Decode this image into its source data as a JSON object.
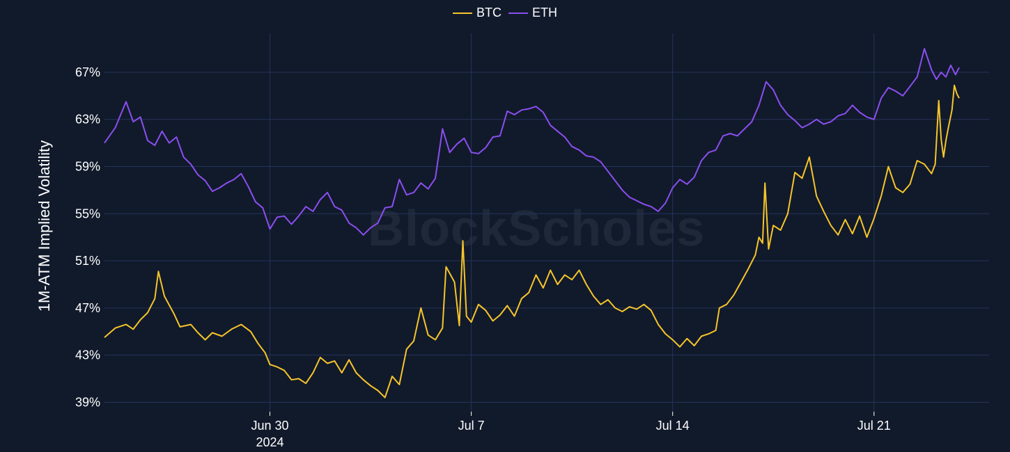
{
  "chart_data": {
    "type": "line",
    "ylabel": "1M-ATM Implied Volatility",
    "watermark": "BlockScholes",
    "y_ticks": [
      "39%",
      "43%",
      "47%",
      "51%",
      "55%",
      "59%",
      "63%",
      "67%"
    ],
    "y_tick_values": [
      39,
      43,
      47,
      51,
      55,
      59,
      63,
      67
    ],
    "ylim": [
      38.2,
      70.3
    ],
    "x_range": [
      "2024-06-24T06:00",
      "2024-07-23T12:00"
    ],
    "x_ticks": [
      {
        "date": "2024-06-30",
        "label": "Jun 30",
        "sublabel": "2024"
      },
      {
        "date": "2024-07-07",
        "label": "Jul 7",
        "sublabel": ""
      },
      {
        "date": "2024-07-14",
        "label": "Jul 14",
        "sublabel": ""
      },
      {
        "date": "2024-07-21",
        "label": "Jul 21",
        "sublabel": ""
      }
    ],
    "grid": true,
    "legend_position": "top-center",
    "series": [
      {
        "name": "BTC",
        "color": "#f7c52b",
        "points": [
          [
            "2024-06-24T06:00",
            44.5
          ],
          [
            "2024-06-24T15:00",
            45.3
          ],
          [
            "2024-06-25T00:00",
            45.6
          ],
          [
            "2024-06-25T06:00",
            45.2
          ],
          [
            "2024-06-25T12:00",
            46.0
          ],
          [
            "2024-06-25T18:00",
            46.6
          ],
          [
            "2024-06-26T00:00",
            47.8
          ],
          [
            "2024-06-26T03:00",
            50.1
          ],
          [
            "2024-06-26T08:00",
            48.0
          ],
          [
            "2024-06-26T16:00",
            46.5
          ],
          [
            "2024-06-26T21:00",
            45.4
          ],
          [
            "2024-06-27T06:00",
            45.6
          ],
          [
            "2024-06-27T12:00",
            44.9
          ],
          [
            "2024-06-27T18:00",
            44.3
          ],
          [
            "2024-06-28T00:00",
            44.9
          ],
          [
            "2024-06-28T08:00",
            44.6
          ],
          [
            "2024-06-28T16:00",
            45.2
          ],
          [
            "2024-06-29T00:00",
            45.6
          ],
          [
            "2024-06-29T08:00",
            45.0
          ],
          [
            "2024-06-29T14:00",
            44.0
          ],
          [
            "2024-06-29T20:00",
            43.2
          ],
          [
            "2024-06-30T00:00",
            42.2
          ],
          [
            "2024-06-30T06:00",
            42.0
          ],
          [
            "2024-06-30T12:00",
            41.7
          ],
          [
            "2024-06-30T18:00",
            40.9
          ],
          [
            "2024-07-01T00:00",
            41.0
          ],
          [
            "2024-07-01T06:00",
            40.6
          ],
          [
            "2024-07-01T12:00",
            41.5
          ],
          [
            "2024-07-01T18:00",
            42.8
          ],
          [
            "2024-07-02T00:00",
            42.3
          ],
          [
            "2024-07-02T06:00",
            42.5
          ],
          [
            "2024-07-02T12:00",
            41.5
          ],
          [
            "2024-07-02T18:00",
            42.6
          ],
          [
            "2024-07-03T00:00",
            41.5
          ],
          [
            "2024-07-03T06:00",
            40.9
          ],
          [
            "2024-07-03T12:00",
            40.4
          ],
          [
            "2024-07-03T18:00",
            40.0
          ],
          [
            "2024-07-04T00:00",
            39.4
          ],
          [
            "2024-07-04T06:00",
            41.2
          ],
          [
            "2024-07-04T12:00",
            40.5
          ],
          [
            "2024-07-04T18:00",
            43.5
          ],
          [
            "2024-07-05T00:00",
            44.2
          ],
          [
            "2024-07-05T06:00",
            47.0
          ],
          [
            "2024-07-05T12:00",
            44.7
          ],
          [
            "2024-07-05T18:00",
            44.3
          ],
          [
            "2024-07-06T00:00",
            45.3
          ],
          [
            "2024-07-06T03:00",
            50.5
          ],
          [
            "2024-07-06T10:00",
            49.2
          ],
          [
            "2024-07-06T14:00",
            45.5
          ],
          [
            "2024-07-06T17:00",
            52.7
          ],
          [
            "2024-07-06T20:00",
            46.3
          ],
          [
            "2024-07-07T00:00",
            45.8
          ],
          [
            "2024-07-07T06:00",
            47.3
          ],
          [
            "2024-07-07T12:00",
            46.8
          ],
          [
            "2024-07-07T18:00",
            45.9
          ],
          [
            "2024-07-08T00:00",
            46.4
          ],
          [
            "2024-07-08T06:00",
            47.2
          ],
          [
            "2024-07-08T12:00",
            46.3
          ],
          [
            "2024-07-08T18:00",
            47.8
          ],
          [
            "2024-07-09T00:00",
            48.3
          ],
          [
            "2024-07-09T06:00",
            49.8
          ],
          [
            "2024-07-09T12:00",
            48.7
          ],
          [
            "2024-07-09T18:00",
            50.2
          ],
          [
            "2024-07-10T00:00",
            49.0
          ],
          [
            "2024-07-10T06:00",
            49.8
          ],
          [
            "2024-07-10T12:00",
            49.4
          ],
          [
            "2024-07-10T18:00",
            50.2
          ],
          [
            "2024-07-11T00:00",
            49.0
          ],
          [
            "2024-07-11T06:00",
            48.0
          ],
          [
            "2024-07-11T12:00",
            47.3
          ],
          [
            "2024-07-11T18:00",
            47.7
          ],
          [
            "2024-07-12T00:00",
            47.0
          ],
          [
            "2024-07-12T06:00",
            46.7
          ],
          [
            "2024-07-12T12:00",
            47.1
          ],
          [
            "2024-07-12T18:00",
            46.9
          ],
          [
            "2024-07-13T00:00",
            47.3
          ],
          [
            "2024-07-13T06:00",
            46.8
          ],
          [
            "2024-07-13T12:00",
            45.6
          ],
          [
            "2024-07-13T18:00",
            44.8
          ],
          [
            "2024-07-14T00:00",
            44.3
          ],
          [
            "2024-07-14T06:00",
            43.7
          ],
          [
            "2024-07-14T12:00",
            44.4
          ],
          [
            "2024-07-14T18:00",
            43.8
          ],
          [
            "2024-07-15T00:00",
            44.6
          ],
          [
            "2024-07-15T06:00",
            44.8
          ],
          [
            "2024-07-15T12:00",
            45.1
          ],
          [
            "2024-07-15T15:00",
            47.0
          ],
          [
            "2024-07-15T21:00",
            47.3
          ],
          [
            "2024-07-16T03:00",
            48.1
          ],
          [
            "2024-07-16T09:00",
            49.2
          ],
          [
            "2024-07-16T15:00",
            50.3
          ],
          [
            "2024-07-16T21:00",
            51.5
          ],
          [
            "2024-07-17T00:00",
            53.0
          ],
          [
            "2024-07-17T03:00",
            52.5
          ],
          [
            "2024-07-17T05:00",
            57.6
          ],
          [
            "2024-07-17T08:00",
            52.0
          ],
          [
            "2024-07-17T12:00",
            54.0
          ],
          [
            "2024-07-17T18:00",
            53.6
          ],
          [
            "2024-07-18T00:00",
            55.0
          ],
          [
            "2024-07-18T06:00",
            58.5
          ],
          [
            "2024-07-18T12:00",
            58.0
          ],
          [
            "2024-07-18T18:00",
            59.8
          ],
          [
            "2024-07-19T00:00",
            56.5
          ],
          [
            "2024-07-19T06:00",
            55.2
          ],
          [
            "2024-07-19T12:00",
            54.0
          ],
          [
            "2024-07-19T18:00",
            53.2
          ],
          [
            "2024-07-20T00:00",
            54.5
          ],
          [
            "2024-07-20T06:00",
            53.3
          ],
          [
            "2024-07-20T12:00",
            54.8
          ],
          [
            "2024-07-20T18:00",
            53.0
          ],
          [
            "2024-07-21T00:00",
            54.6
          ],
          [
            "2024-07-21T06:00",
            56.5
          ],
          [
            "2024-07-21T12:00",
            59.0
          ],
          [
            "2024-07-21T18:00",
            57.2
          ],
          [
            "2024-07-22T00:00",
            56.8
          ],
          [
            "2024-07-22T06:00",
            57.5
          ],
          [
            "2024-07-22T12:00",
            59.5
          ],
          [
            "2024-07-22T18:00",
            59.2
          ],
          [
            "2024-07-23T00:00",
            58.4
          ],
          [
            "2024-07-23T03:00",
            59.2
          ],
          [
            "2024-07-23T06:00",
            64.6
          ],
          [
            "2024-07-23T08:00",
            61.3
          ],
          [
            "2024-07-23T10:00",
            59.8
          ],
          [
            "2024-07-23T12:00",
            61.2
          ],
          [
            "2024-07-23T14:00",
            62.3
          ],
          [
            "2024-07-23T17:00",
            63.8
          ],
          [
            "2024-07-23T19:00",
            65.9
          ],
          [
            "2024-07-23T21:00",
            65.2
          ],
          [
            "2024-07-23T23:00",
            64.8
          ]
        ]
      },
      {
        "name": "ETH",
        "color": "#8c4ef0",
        "points": [
          [
            "2024-06-24T06:00",
            61.0
          ],
          [
            "2024-06-24T15:00",
            62.3
          ],
          [
            "2024-06-25T00:00",
            64.5
          ],
          [
            "2024-06-25T06:00",
            62.8
          ],
          [
            "2024-06-25T12:00",
            63.2
          ],
          [
            "2024-06-25T18:00",
            61.2
          ],
          [
            "2024-06-26T00:00",
            60.8
          ],
          [
            "2024-06-26T06:00",
            62.0
          ],
          [
            "2024-06-26T12:00",
            61.0
          ],
          [
            "2024-06-26T18:00",
            61.5
          ],
          [
            "2024-06-27T00:00",
            59.8
          ],
          [
            "2024-06-27T06:00",
            59.2
          ],
          [
            "2024-06-27T12:00",
            58.3
          ],
          [
            "2024-06-27T18:00",
            57.8
          ],
          [
            "2024-06-28T00:00",
            56.9
          ],
          [
            "2024-06-28T06:00",
            57.2
          ],
          [
            "2024-06-28T12:00",
            57.6
          ],
          [
            "2024-06-28T18:00",
            57.9
          ],
          [
            "2024-06-29T00:00",
            58.4
          ],
          [
            "2024-06-29T06:00",
            57.3
          ],
          [
            "2024-06-29T12:00",
            56.0
          ],
          [
            "2024-06-29T18:00",
            55.5
          ],
          [
            "2024-06-30T00:00",
            53.7
          ],
          [
            "2024-06-30T06:00",
            54.7
          ],
          [
            "2024-06-30T12:00",
            54.8
          ],
          [
            "2024-06-30T18:00",
            54.1
          ],
          [
            "2024-07-01T00:00",
            54.8
          ],
          [
            "2024-07-01T06:00",
            55.6
          ],
          [
            "2024-07-01T12:00",
            55.2
          ],
          [
            "2024-07-01T18:00",
            56.2
          ],
          [
            "2024-07-02T00:00",
            56.8
          ],
          [
            "2024-07-02T06:00",
            55.6
          ],
          [
            "2024-07-02T12:00",
            55.3
          ],
          [
            "2024-07-02T18:00",
            54.2
          ],
          [
            "2024-07-03T00:00",
            53.8
          ],
          [
            "2024-07-03T06:00",
            53.2
          ],
          [
            "2024-07-03T12:00",
            53.8
          ],
          [
            "2024-07-03T18:00",
            54.2
          ],
          [
            "2024-07-04T00:00",
            55.5
          ],
          [
            "2024-07-04T06:00",
            55.6
          ],
          [
            "2024-07-04T12:00",
            57.9
          ],
          [
            "2024-07-04T18:00",
            56.6
          ],
          [
            "2024-07-05T00:00",
            56.8
          ],
          [
            "2024-07-05T06:00",
            57.6
          ],
          [
            "2024-07-05T12:00",
            57.1
          ],
          [
            "2024-07-05T18:00",
            58.0
          ],
          [
            "2024-07-06T00:00",
            62.2
          ],
          [
            "2024-07-06T06:00",
            60.2
          ],
          [
            "2024-07-06T12:00",
            60.9
          ],
          [
            "2024-07-06T18:00",
            61.4
          ],
          [
            "2024-07-07T00:00",
            60.2
          ],
          [
            "2024-07-07T06:00",
            60.1
          ],
          [
            "2024-07-07T12:00",
            60.6
          ],
          [
            "2024-07-07T18:00",
            61.5
          ],
          [
            "2024-07-08T00:00",
            61.6
          ],
          [
            "2024-07-08T06:00",
            63.7
          ],
          [
            "2024-07-08T12:00",
            63.4
          ],
          [
            "2024-07-08T18:00",
            63.8
          ],
          [
            "2024-07-09T00:00",
            63.9
          ],
          [
            "2024-07-09T06:00",
            64.1
          ],
          [
            "2024-07-09T12:00",
            63.6
          ],
          [
            "2024-07-09T18:00",
            62.5
          ],
          [
            "2024-07-10T00:00",
            62.0
          ],
          [
            "2024-07-10T06:00",
            61.5
          ],
          [
            "2024-07-10T12:00",
            60.7
          ],
          [
            "2024-07-10T18:00",
            60.4
          ],
          [
            "2024-07-11T00:00",
            59.9
          ],
          [
            "2024-07-11T06:00",
            59.8
          ],
          [
            "2024-07-11T12:00",
            59.4
          ],
          [
            "2024-07-11T18:00",
            58.6
          ],
          [
            "2024-07-12T00:00",
            57.8
          ],
          [
            "2024-07-12T06:00",
            57.0
          ],
          [
            "2024-07-12T12:00",
            56.4
          ],
          [
            "2024-07-12T18:00",
            56.1
          ],
          [
            "2024-07-13T00:00",
            55.8
          ],
          [
            "2024-07-13T06:00",
            55.6
          ],
          [
            "2024-07-13T12:00",
            55.2
          ],
          [
            "2024-07-13T18:00",
            55.9
          ],
          [
            "2024-07-14T00:00",
            57.2
          ],
          [
            "2024-07-14T06:00",
            57.9
          ],
          [
            "2024-07-14T12:00",
            57.5
          ],
          [
            "2024-07-14T18:00",
            58.1
          ],
          [
            "2024-07-15T00:00",
            59.5
          ],
          [
            "2024-07-15T06:00",
            60.2
          ],
          [
            "2024-07-15T12:00",
            60.4
          ],
          [
            "2024-07-15T18:00",
            61.6
          ],
          [
            "2024-07-16T00:00",
            61.8
          ],
          [
            "2024-07-16T06:00",
            61.6
          ],
          [
            "2024-07-16T12:00",
            62.2
          ],
          [
            "2024-07-16T18:00",
            62.8
          ],
          [
            "2024-07-17T00:00",
            64.2
          ],
          [
            "2024-07-17T06:00",
            66.2
          ],
          [
            "2024-07-17T12:00",
            65.5
          ],
          [
            "2024-07-17T18:00",
            64.2
          ],
          [
            "2024-07-18T00:00",
            63.4
          ],
          [
            "2024-07-18T06:00",
            62.9
          ],
          [
            "2024-07-18T12:00",
            62.3
          ],
          [
            "2024-07-18T18:00",
            62.6
          ],
          [
            "2024-07-19T00:00",
            63.0
          ],
          [
            "2024-07-19T06:00",
            62.6
          ],
          [
            "2024-07-19T12:00",
            62.8
          ],
          [
            "2024-07-19T18:00",
            63.3
          ],
          [
            "2024-07-20T00:00",
            63.5
          ],
          [
            "2024-07-20T06:00",
            64.2
          ],
          [
            "2024-07-20T12:00",
            63.6
          ],
          [
            "2024-07-20T18:00",
            63.2
          ],
          [
            "2024-07-21T00:00",
            63.0
          ],
          [
            "2024-07-21T06:00",
            64.8
          ],
          [
            "2024-07-21T12:00",
            65.7
          ],
          [
            "2024-07-21T18:00",
            65.4
          ],
          [
            "2024-07-22T00:00",
            65.0
          ],
          [
            "2024-07-22T06:00",
            65.8
          ],
          [
            "2024-07-22T12:00",
            66.6
          ],
          [
            "2024-07-22T18:00",
            69.0
          ],
          [
            "2024-07-23T00:00",
            67.2
          ],
          [
            "2024-07-23T04:00",
            66.4
          ],
          [
            "2024-07-23T08:00",
            67.0
          ],
          [
            "2024-07-23T12:00",
            66.6
          ],
          [
            "2024-07-23T16:00",
            67.6
          ],
          [
            "2024-07-23T20:00",
            66.8
          ],
          [
            "2024-07-23T23:00",
            67.4
          ]
        ]
      }
    ]
  }
}
